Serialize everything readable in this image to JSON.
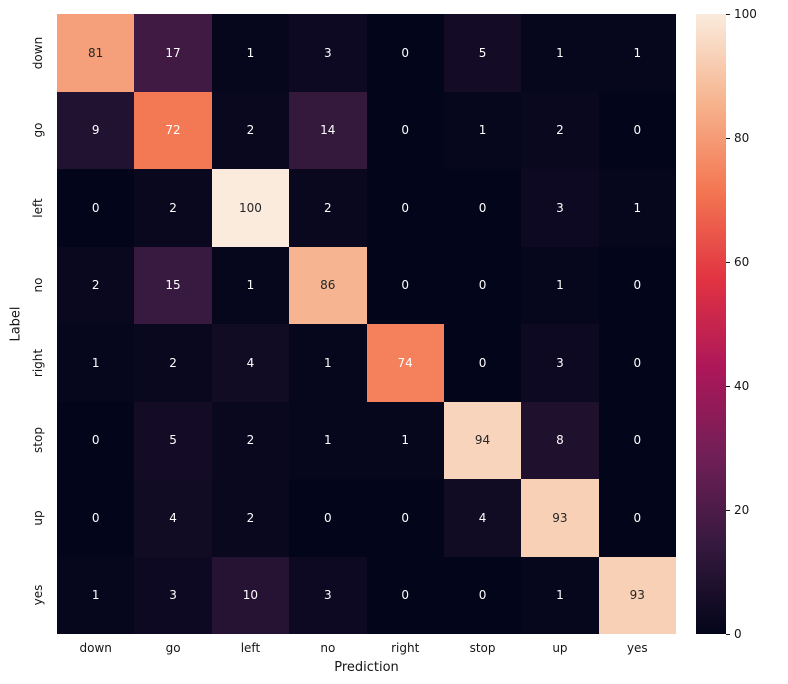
{
  "chart_data": {
    "type": "heatmap",
    "title": "",
    "xlabel": "Prediction",
    "ylabel": "Label",
    "categories": [
      "down",
      "go",
      "left",
      "no",
      "right",
      "stop",
      "up",
      "yes"
    ],
    "values": [
      [
        81,
        17,
        1,
        3,
        0,
        5,
        1,
        1
      ],
      [
        9,
        72,
        2,
        14,
        0,
        1,
        2,
        0
      ],
      [
        0,
        2,
        100,
        2,
        0,
        0,
        3,
        1
      ],
      [
        2,
        15,
        1,
        86,
        0,
        0,
        1,
        0
      ],
      [
        1,
        2,
        4,
        1,
        74,
        0,
        3,
        0
      ],
      [
        0,
        5,
        2,
        1,
        1,
        94,
        8,
        0
      ],
      [
        0,
        4,
        2,
        0,
        0,
        4,
        93,
        0
      ],
      [
        1,
        3,
        10,
        3,
        0,
        0,
        1,
        93
      ]
    ],
    "vmin": 0,
    "vmax": 100,
    "colorbar_ticks": [
      0,
      20,
      40,
      60,
      80,
      100
    ],
    "colormap": "rocket",
    "colormap_stops": [
      [
        0.0,
        "#03051A"
      ],
      [
        0.143,
        "#35193E"
      ],
      [
        0.286,
        "#701F57"
      ],
      [
        0.429,
        "#AD1759"
      ],
      [
        0.571,
        "#E13342"
      ],
      [
        0.714,
        "#F37651"
      ],
      [
        0.857,
        "#F6B48E"
      ],
      [
        1.0,
        "#FAEBDD"
      ]
    ],
    "annotation_dark_text": "#262626",
    "annotation_light_text": "#ffffff",
    "background": "#ffffff",
    "legend_position": "right-colorbar",
    "grid": false
  }
}
